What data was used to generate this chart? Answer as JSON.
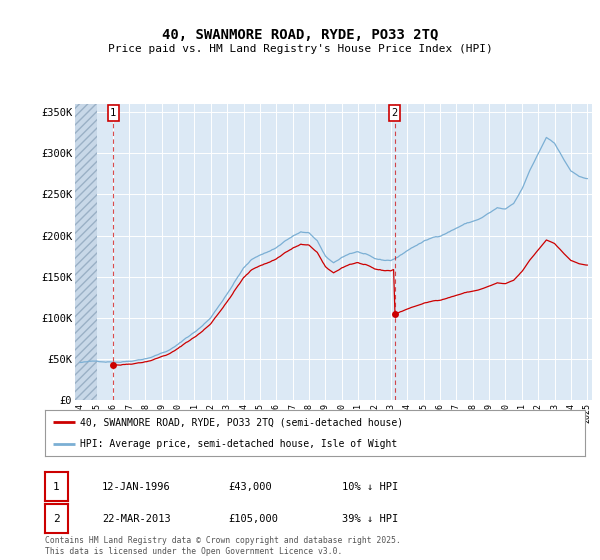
{
  "title": "40, SWANMORE ROAD, RYDE, PO33 2TQ",
  "subtitle": "Price paid vs. HM Land Registry's House Price Index (HPI)",
  "background_color": "#dce9f5",
  "plot_bg_color": "#dce9f5",
  "grid_color": "#ffffff",
  "ylim": [
    0,
    360000
  ],
  "yticks": [
    0,
    50000,
    100000,
    150000,
    200000,
    250000,
    300000,
    350000
  ],
  "ytick_labels": [
    "£0",
    "£50K",
    "£100K",
    "£150K",
    "£200K",
    "£250K",
    "£300K",
    "£350K"
  ],
  "xlim_start": 1993.7,
  "xlim_end": 2025.3,
  "marker1_x": 1996.04,
  "marker1_y": 43000,
  "marker2_x": 2013.23,
  "marker2_y": 105000,
  "legend_line1": "40, SWANMORE ROAD, RYDE, PO33 2TQ (semi-detached house)",
  "legend_line2": "HPI: Average price, semi-detached house, Isle of Wight",
  "marker1_date": "12-JAN-1996",
  "marker1_price": "£43,000",
  "marker1_hpi": "10% ↓ HPI",
  "marker2_date": "22-MAR-2013",
  "marker2_price": "£105,000",
  "marker2_hpi": "39% ↓ HPI",
  "footer": "Contains HM Land Registry data © Crown copyright and database right 2025.\nThis data is licensed under the Open Government Licence v3.0.",
  "red_line_color": "#cc0000",
  "blue_line_color": "#7bafd4",
  "marker_dot_color": "#cc0000"
}
